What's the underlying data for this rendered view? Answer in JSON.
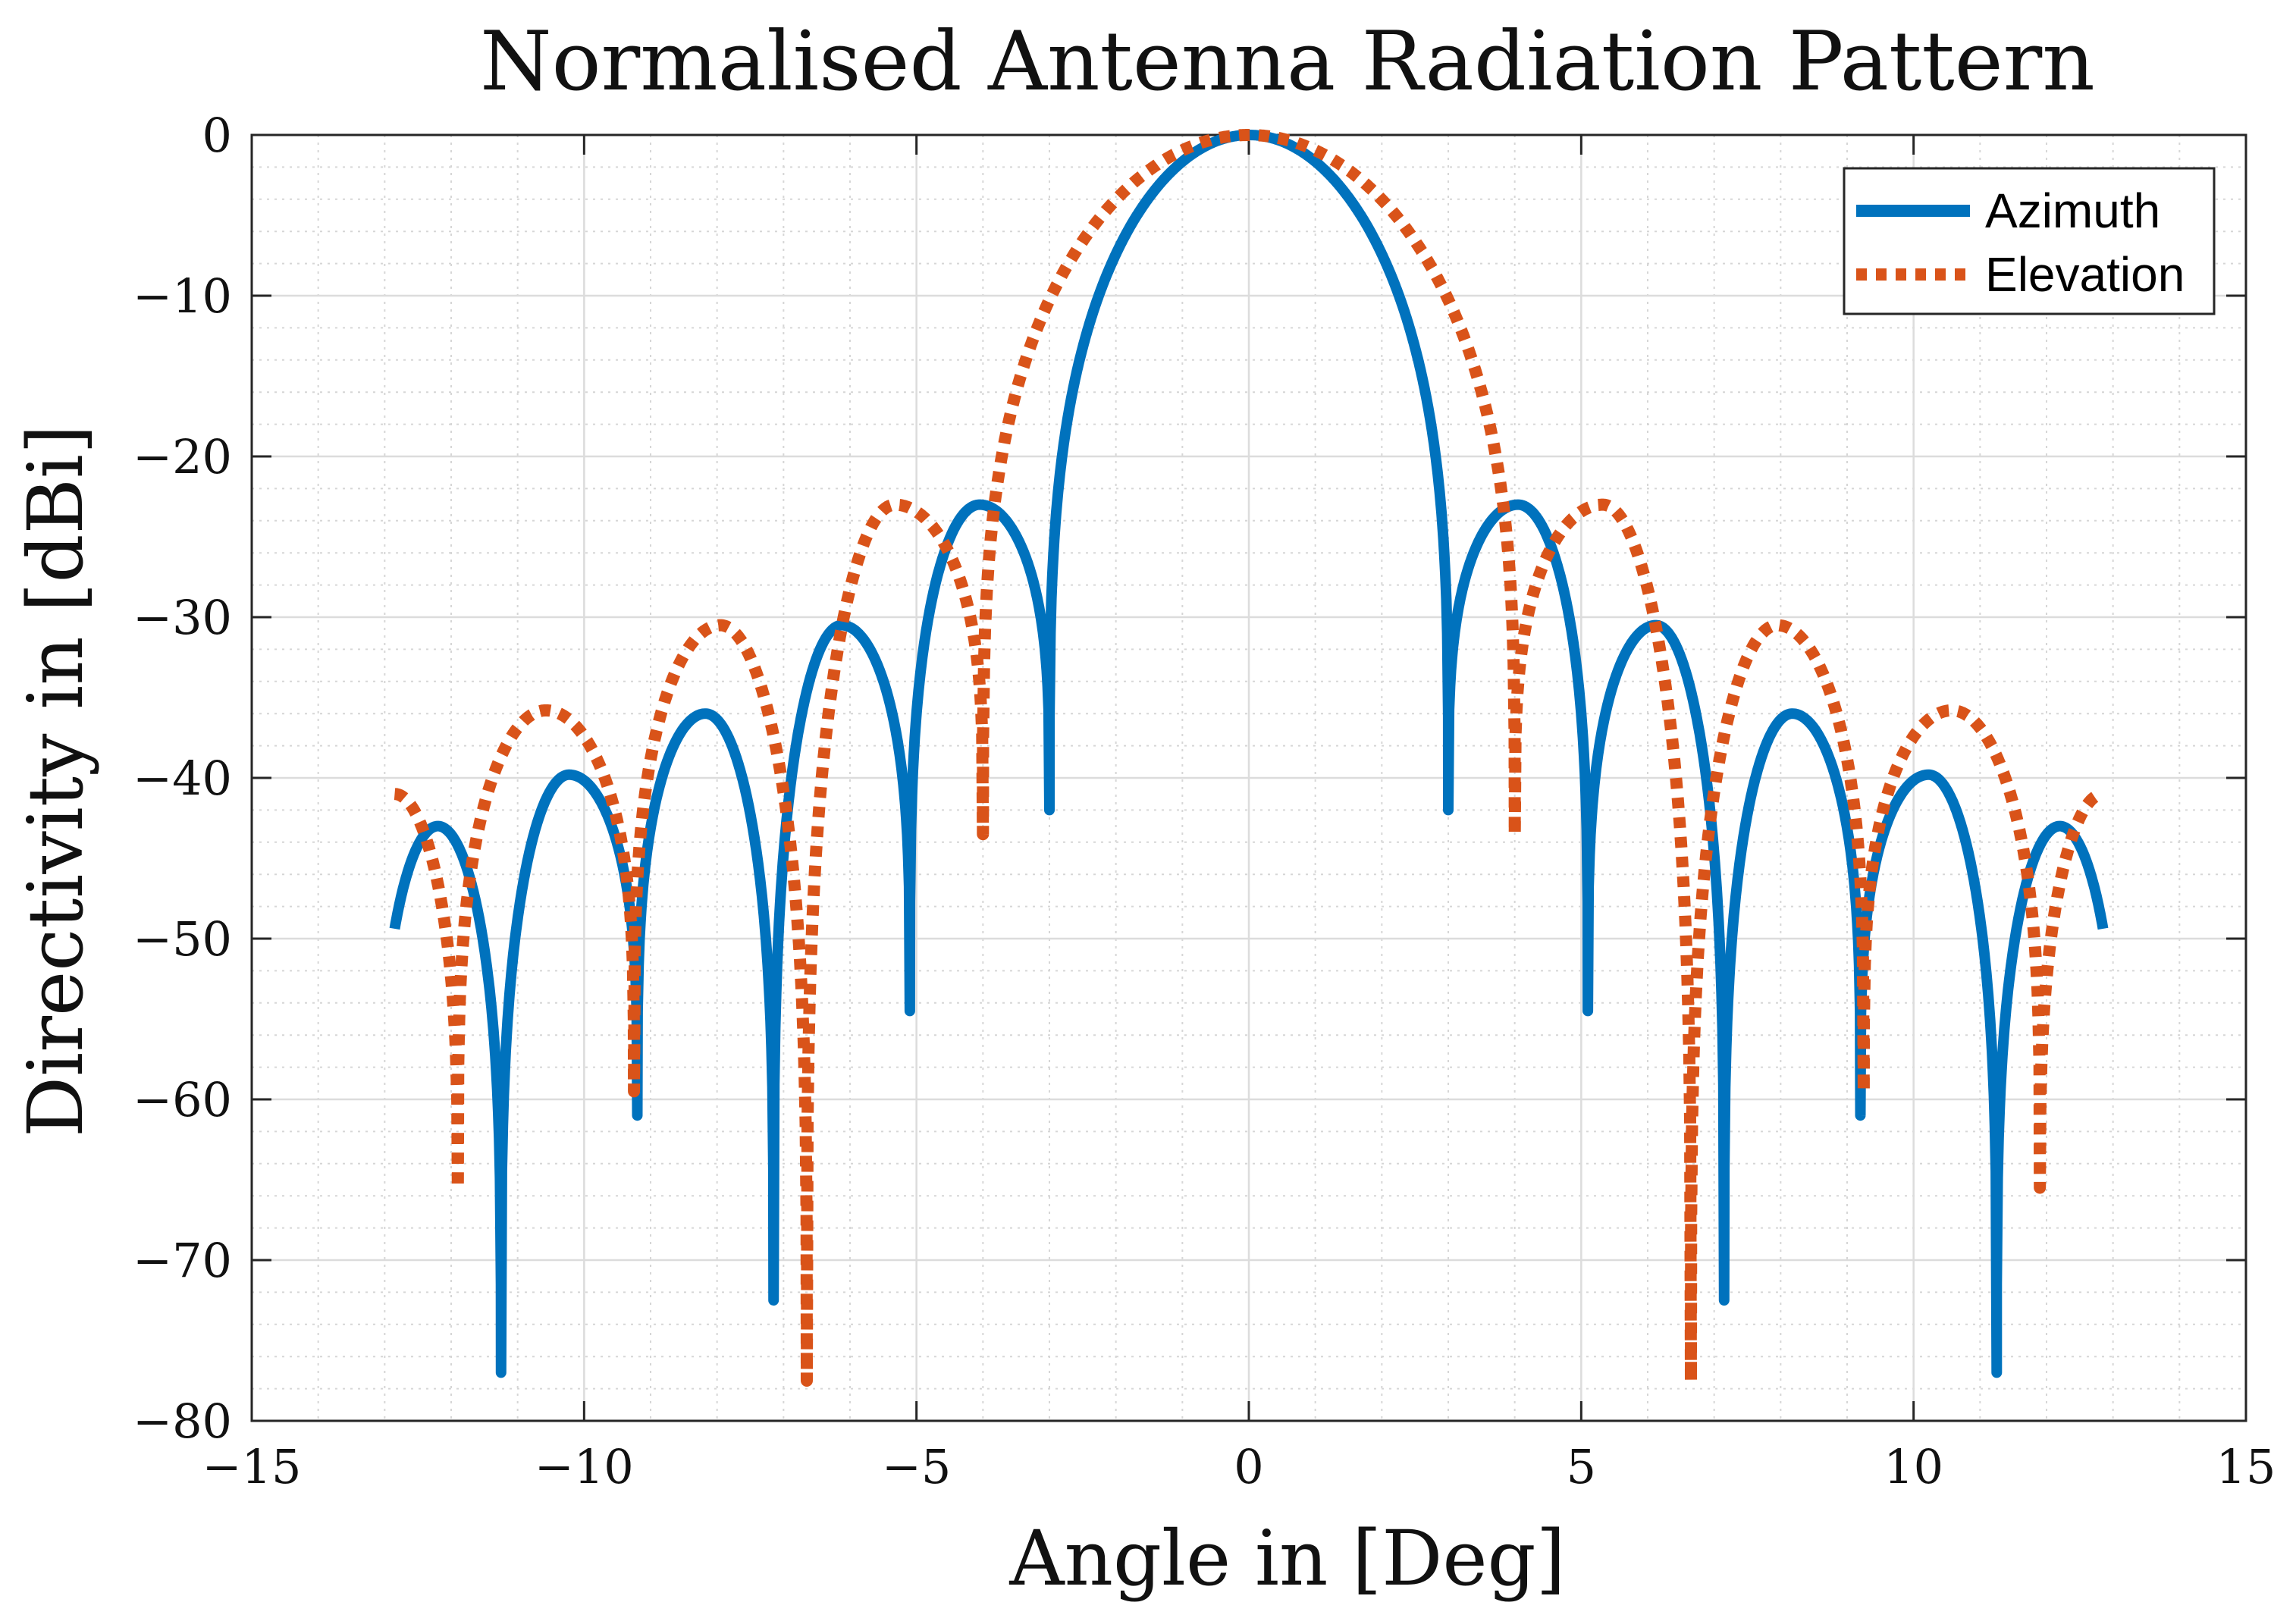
{
  "chart_data": {
    "type": "line",
    "title": "Normalised Antenna Radiation Pattern",
    "xlabel": "Angle in [Deg]",
    "ylabel": "Directivity in [dBi]",
    "xlim": [
      -15,
      15
    ],
    "ylim": [
      -80,
      0
    ],
    "x_ticks": [
      -15,
      -10,
      -5,
      0,
      5,
      10,
      15
    ],
    "x_tick_labels": [
      "−15",
      "−10",
      "−5",
      "0",
      "5",
      "10",
      "15"
    ],
    "y_ticks": [
      0,
      -10,
      -20,
      -30,
      -40,
      -50,
      -60,
      -70,
      -80
    ],
    "y_tick_labels": [
      "0",
      "−10",
      "−20",
      "−30",
      "−40",
      "−50",
      "−60",
      "−70",
      "−80"
    ],
    "grid": true,
    "minor_grid": true,
    "legend_position": "top-right",
    "series": [
      {
        "name": "Azimuth",
        "color": "#0072BD",
        "line_style": "solid",
        "x_range": [
          -12.85,
          12.85
        ],
        "null_angles": [
          3.0,
          5.1,
          7.15,
          9.2,
          11.25
        ],
        "null_depths": [
          -42,
          -54.5,
          -72.5,
          -61,
          -77
        ],
        "sidelobe_peaks": [
          {
            "x": 3.85,
            "y": -23
          },
          {
            "x": 6.0,
            "y": -30.5
          },
          {
            "x": 8.05,
            "y": -36
          },
          {
            "x": 10.1,
            "y": -39.8
          },
          {
            "x": 12.2,
            "y": -43
          }
        ],
        "edge_value": -47
      },
      {
        "name": "Elevation",
        "color": "#D95319",
        "line_style": "dotted",
        "x_range": [
          -12.85,
          12.85
        ],
        "null_angles": [
          4.0,
          6.65,
          9.25,
          11.9
        ],
        "null_depths": [
          -43.5,
          -77.5,
          -59.5,
          -65.5
        ],
        "sidelobe_peaks": [
          {
            "x": 4.9,
            "y": -23
          },
          {
            "x": 7.75,
            "y": -30.5
          },
          {
            "x": 10.45,
            "y": -35.8
          }
        ],
        "edge_value": -41
      }
    ]
  }
}
